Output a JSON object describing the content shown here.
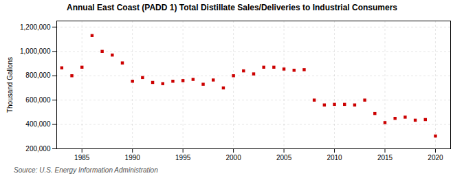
{
  "chart_data": {
    "type": "scatter",
    "title": "Annual East Coast (PADD 1) Total Distillate Sales/Deliveries to Industrial Consumers",
    "ylabel": "Thousand Gallons",
    "source": "Source: U.S. Energy Information Administration",
    "x": [
      1983,
      1984,
      1985,
      1986,
      1987,
      1988,
      1989,
      1990,
      1991,
      1992,
      1993,
      1994,
      1995,
      1996,
      1997,
      1998,
      1999,
      2000,
      2001,
      2002,
      2003,
      2004,
      2005,
      2006,
      2007,
      2008,
      2009,
      2010,
      2011,
      2012,
      2013,
      2014,
      2015,
      2016,
      2017,
      2018,
      2019,
      2020
    ],
    "values": [
      865000,
      800000,
      870000,
      1130000,
      1000000,
      970000,
      905000,
      755000,
      785000,
      745000,
      735000,
      755000,
      760000,
      770000,
      730000,
      765000,
      700000,
      800000,
      840000,
      815000,
      870000,
      870000,
      855000,
      845000,
      850000,
      600000,
      560000,
      565000,
      565000,
      560000,
      600000,
      490000,
      415000,
      450000,
      460000,
      435000,
      440000,
      305000
    ],
    "color": "#cc0000",
    "marker": "square",
    "xlim": [
      1982.5,
      2021.5
    ],
    "xticks": [
      1985,
      1990,
      1995,
      2000,
      2005,
      2010,
      2015,
      2020
    ],
    "ylim": [
      200000,
      1250000
    ],
    "yticks": [
      {
        "value": 200000,
        "label": "200,000"
      },
      {
        "value": 400000,
        "label": "400,000"
      },
      {
        "value": 600000,
        "label": "600,000"
      },
      {
        "value": 800000,
        "label": "800,000"
      },
      {
        "value": 1000000,
        "label": "1,000,000"
      },
      {
        "value": 1200000,
        "label": "1,200,000"
      }
    ],
    "grid": true
  }
}
